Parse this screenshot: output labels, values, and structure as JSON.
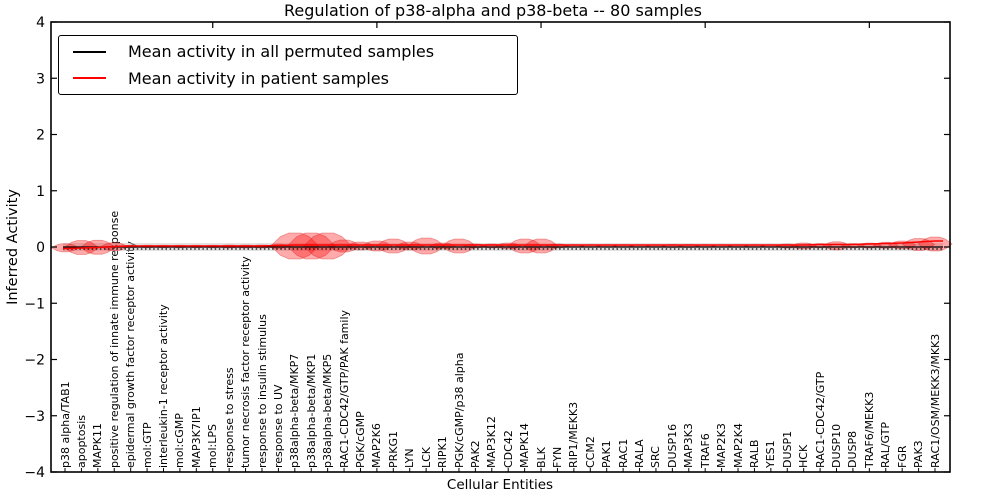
{
  "title": "Regulation of p38-alpha and p38-beta -- 80 samples",
  "legend": {
    "entries": [
      {
        "label": "Mean activity in all permuted samples",
        "color": "#000000"
      },
      {
        "label": "Mean activity in patient samples",
        "color": "#ff0000"
      }
    ]
  },
  "chart_data": {
    "type": "violin",
    "title": "Regulation of p38-alpha and p38-beta -- 80 samples",
    "xlabel": "Cellular Entities",
    "ylabel": "Inferred Activity",
    "ylim": [
      -4,
      4
    ],
    "yticks": [
      4,
      3,
      2,
      1,
      0,
      -1,
      -2,
      -3,
      -4
    ],
    "ytick_labels": [
      "4",
      "3",
      "2",
      "1",
      "0",
      "−1",
      "−2",
      "−3",
      "−4"
    ],
    "grid": false,
    "legend_position": "upper left",
    "categories": [
      "p38 alpha/TAB1",
      "apoptosis",
      "MAPK11",
      "positive regulation of innate immune response",
      "epidermal growth factor receptor activity",
      "mol:GTP",
      "interleukin-1 receptor activity",
      "mol:cGMP",
      "MAP3K7IP1",
      "mol:LPS",
      "response to stress",
      "tumor necrosis factor receptor activity",
      "response to insulin stimulus",
      "response to UV",
      "p38alpha-beta/MKP7",
      "p38alpha-beta/MKP1",
      "p38alpha-beta/MKP5",
      "RAC1-CDC42/GTP/PAK family",
      "PGK/cGMP",
      "MAP2K6",
      "PRKG1",
      "LYN",
      "LCK",
      "RIPK1",
      "PGK/cGMP/p38 alpha",
      "PAK2",
      "MAP3K12",
      "CDC42",
      "MAPK14",
      "BLK",
      "FYN",
      "RIP1/MEKK3",
      "CCM2",
      "PAK1",
      "RAC1",
      "RALA",
      "SRC",
      "DUSP16",
      "MAP3K3",
      "TRAF6",
      "MAP2K3",
      "MAP2K4",
      "RALB",
      "YES1",
      "DUSP1",
      "HCK",
      "RAC1-CDC42/GTP",
      "DUSP10",
      "DUSP8",
      "TRAF6/MEKK3",
      "RAL/GTP",
      "FGR",
      "PAK3",
      "RAC1/OSM/MEKK3/MKK3"
    ],
    "series": [
      {
        "name": "Mean activity in all permuted samples",
        "color": "#000000",
        "line_styles": [
          "solid",
          "dotted"
        ],
        "values": [
          0,
          0,
          0,
          0,
          0,
          0,
          0,
          0,
          0,
          0,
          0,
          0,
          0,
          0,
          0,
          0,
          0,
          0,
          0,
          0,
          0,
          0,
          0,
          0,
          0,
          0,
          0,
          0,
          0,
          0,
          0,
          0,
          0,
          0,
          0,
          0,
          0,
          0,
          0,
          0,
          0,
          0,
          0,
          0,
          0,
          0,
          0,
          0,
          0,
          0,
          0,
          0,
          0,
          0
        ]
      },
      {
        "name": "Mean activity in patient samples",
        "color": "#ff0000",
        "line_styles": [
          "solid"
        ],
        "values": [
          -0.027,
          -0.018,
          -0.009,
          0.009,
          0.018,
          0.018,
          0.018,
          0.018,
          0.018,
          0.018,
          0.018,
          0.018,
          0.018,
          0.027,
          0.036,
          0.036,
          0.036,
          0.036,
          0.036,
          0.036,
          0.036,
          0.036,
          0.036,
          0.036,
          0.036,
          0.036,
          0.036,
          0.036,
          0.036,
          0.036,
          0.036,
          0.036,
          0.036,
          0.036,
          0.036,
          0.036,
          0.036,
          0.036,
          0.036,
          0.036,
          0.036,
          0.036,
          0.036,
          0.036,
          0.036,
          0.036,
          0.044,
          0.044,
          0.044,
          0.053,
          0.062,
          0.071,
          0.089,
          0.107
        ]
      }
    ],
    "violins": {
      "name": "patient sample activity distributions",
      "fill_color": "#ff0000",
      "fill_opacity": 0.33,
      "half_heights": [
        0.071,
        0.124,
        0.124,
        0.071,
        0.021,
        0.021,
        0.021,
        0.021,
        0.021,
        0.021,
        0.027,
        0.027,
        0.027,
        0.036,
        0.231,
        0.231,
        0.231,
        0.107,
        0.071,
        0.089,
        0.124,
        0.071,
        0.142,
        0.053,
        0.124,
        0.036,
        0.036,
        0.053,
        0.124,
        0.124,
        0.036,
        0.021,
        0.021,
        0.021,
        0.021,
        0.021,
        0.021,
        0.027,
        0.027,
        0.021,
        0.021,
        0.021,
        0.021,
        0.021,
        0.036,
        0.053,
        0.036,
        0.071,
        0.036,
        0.044,
        0.053,
        0.071,
        0.107,
        0.124
      ]
    },
    "permuted_band": {
      "color": "#c8c8c8",
      "half_height": 0.07
    }
  }
}
